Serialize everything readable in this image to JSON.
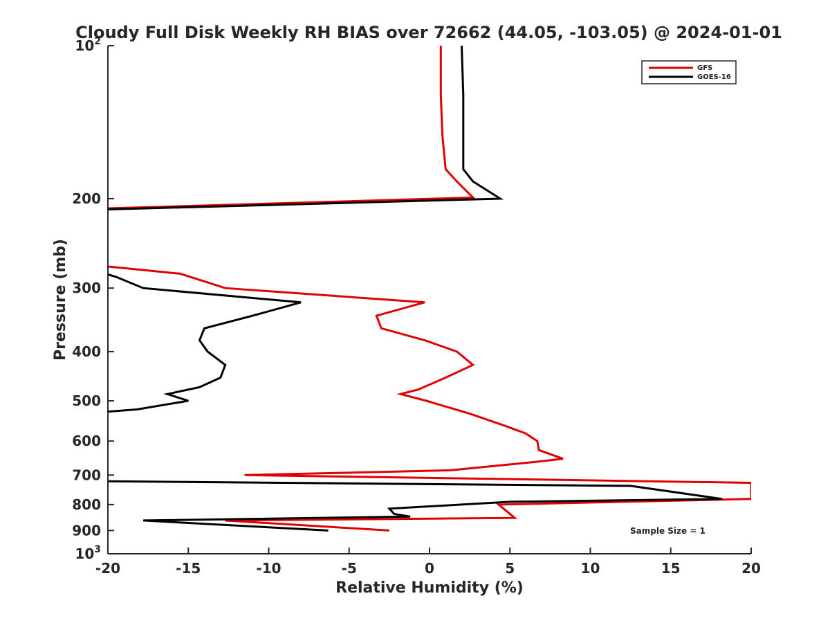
{
  "chart_data": {
    "type": "line",
    "title": "Cloudy Full Disk Weekly RH BIAS over 72662 (44.05, -103.05) @ 2024-01-01",
    "xlabel": "Relative Humidity (%)",
    "ylabel": "Pressure (mb)",
    "xlim": [
      -20,
      20
    ],
    "ylim": [
      100,
      1000
    ],
    "y_scale": "log",
    "y_reversed": true,
    "grid": false,
    "x_ticks": [
      -20,
      -15,
      -10,
      -5,
      0,
      5,
      10,
      15,
      20
    ],
    "x_tick_labels": [
      "-20",
      "-15",
      "-10",
      "-5",
      "0",
      "5",
      "10",
      "15",
      "20"
    ],
    "y_ticks": [
      {
        "value": 100,
        "base": "10",
        "exp": "2"
      },
      {
        "value": 200,
        "label": "200"
      },
      {
        "value": 300,
        "label": "300"
      },
      {
        "value": 400,
        "label": "400"
      },
      {
        "value": 500,
        "label": "500"
      },
      {
        "value": 600,
        "label": "600"
      },
      {
        "value": 700,
        "label": "700"
      },
      {
        "value": 800,
        "label": "800"
      },
      {
        "value": 900,
        "label": "900"
      },
      {
        "value": 1000,
        "base": "10",
        "exp": "3"
      }
    ],
    "legend_position": "top-right",
    "annotation": "Sample Size = 1",
    "series": [
      {
        "name": "GFS",
        "color": "#e00000",
        "segments": [
          [
            [
              0.7,
              100
            ],
            [
              0.7,
              125
            ],
            [
              0.8,
              150
            ],
            [
              1.0,
              175
            ],
            [
              1.7,
              185
            ],
            [
              2.7,
              199
            ],
            [
              -20,
              209
            ]
          ],
          [
            [
              -20,
              272
            ],
            [
              -15.5,
              281
            ],
            [
              -12.7,
              300
            ],
            [
              -0.3,
              320
            ],
            [
              -3.3,
              340
            ],
            [
              -3.0,
              360
            ],
            [
              -0.3,
              380
            ],
            [
              1.7,
              400
            ],
            [
              2.7,
              425
            ],
            [
              1.0,
              450
            ],
            [
              -0.7,
              475
            ],
            [
              -1.8,
              485
            ],
            [
              -0.2,
              500
            ],
            [
              2.5,
              530
            ],
            [
              4.7,
              560
            ],
            [
              6.0,
              580
            ],
            [
              6.7,
              600
            ],
            [
              6.8,
              625
            ],
            [
              8.3,
              650
            ],
            [
              6.5,
              660
            ],
            [
              1.3,
              685
            ],
            [
              -11.5,
              700
            ],
            [
              20,
              725
            ],
            [
              20,
              780
            ],
            [
              4.3,
              800
            ],
            [
              5.3,
              850
            ],
            [
              -12.7,
              860
            ],
            [
              -2.5,
              900
            ]
          ]
        ]
      },
      {
        "name": "GOES-16",
        "color": "#000000",
        "segments": [
          [
            [
              2.0,
              100
            ],
            [
              2.1,
              125
            ],
            [
              2.1,
              150
            ],
            [
              2.1,
              175
            ],
            [
              2.7,
              185
            ],
            [
              4.4,
              200
            ],
            [
              -20,
              210
            ]
          ],
          [
            [
              -20,
              282
            ],
            [
              -19.5,
              285
            ],
            [
              -17.8,
              300
            ],
            [
              -8.0,
              320
            ],
            [
              -11.0,
              340
            ],
            [
              -14.0,
              360
            ],
            [
              -14.3,
              380
            ],
            [
              -13.8,
              400
            ],
            [
              -12.7,
              425
            ],
            [
              -13.0,
              450
            ],
            [
              -14.3,
              470
            ],
            [
              -16.3,
              485
            ],
            [
              -15.0,
              500
            ],
            [
              -18.2,
              520
            ],
            [
              -20,
              525
            ]
          ],
          [
            [
              -20,
              720
            ],
            [
              12.5,
              735
            ],
            [
              18.2,
              780
            ],
            [
              5.0,
              790
            ],
            [
              -2.5,
              815
            ],
            [
              -2.2,
              835
            ],
            [
              -1.2,
              845
            ],
            [
              -17.8,
              860
            ],
            [
              -6.3,
              900
            ]
          ]
        ]
      }
    ]
  }
}
